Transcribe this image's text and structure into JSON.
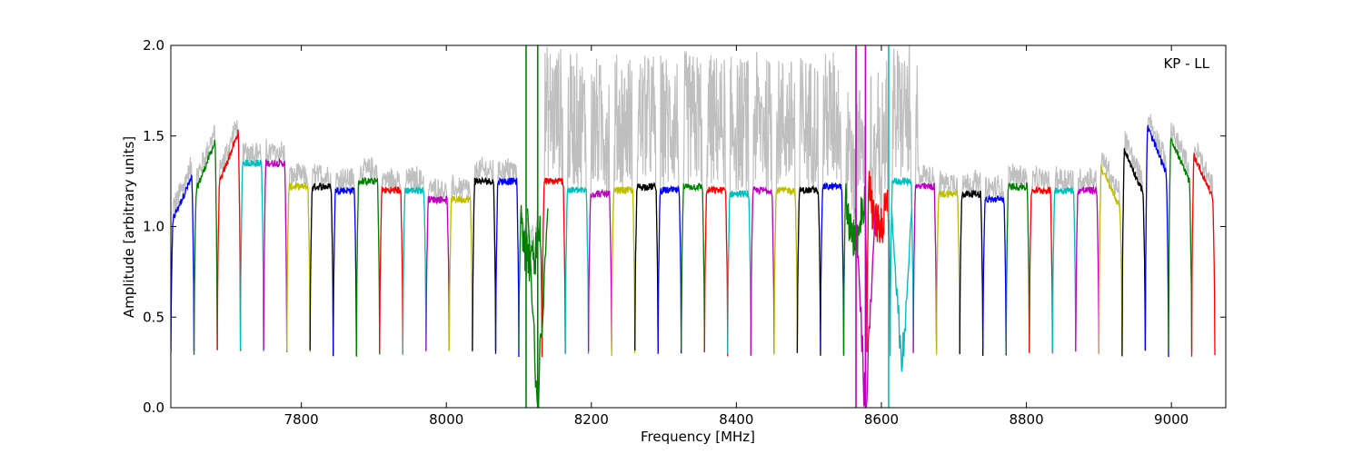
{
  "chart_data": {
    "type": "line",
    "xlabel": "Frequency [MHz]",
    "ylabel": "Amplitude [arbitrary units]",
    "annotation": "KP - LL",
    "annotation_placement": "top-right",
    "xlim": [
      7620,
      9075
    ],
    "ylim": [
      0.0,
      2.0
    ],
    "xticks": [
      7800,
      8000,
      8200,
      8400,
      8600,
      8800,
      9000
    ],
    "yticks": [
      0.0,
      0.5,
      1.0,
      1.5,
      2.0
    ],
    "ytick_labels": [
      "0.0",
      "0.5",
      "1.0",
      "1.5",
      "2.0"
    ],
    "grid": false,
    "series_colors": [
      "#0000ff",
      "#008000",
      "#ff0000",
      "#00bfbf",
      "#bf00bf",
      "#bfbf00",
      "#000000"
    ],
    "background_series": {
      "color": "#bfbfbf",
      "description_range_mhz": [
        8130,
        8650
      ],
      "peak_amplitude": 2.0
    },
    "bandpass_channel_width_mhz": 32,
    "channels": [
      {
        "start": 7620,
        "level": 1.3,
        "shape": "rising"
      },
      {
        "start": 7652,
        "level": 1.5,
        "shape": "rising"
      },
      {
        "start": 7684,
        "level": 1.55,
        "shape": "rising"
      },
      {
        "start": 7716,
        "level": 1.35,
        "shape": "flat"
      },
      {
        "start": 7748,
        "level": 1.35,
        "shape": "flat"
      },
      {
        "start": 7780,
        "level": 1.22,
        "shape": "flat"
      },
      {
        "start": 7812,
        "level": 1.22,
        "shape": "flat"
      },
      {
        "start": 7844,
        "level": 1.2,
        "shape": "flat"
      },
      {
        "start": 7876,
        "level": 1.25,
        "shape": "flat"
      },
      {
        "start": 7908,
        "level": 1.2,
        "shape": "flat"
      },
      {
        "start": 7940,
        "level": 1.2,
        "shape": "flat"
      },
      {
        "start": 7972,
        "level": 1.15,
        "shape": "flat"
      },
      {
        "start": 8004,
        "level": 1.15,
        "shape": "flat"
      },
      {
        "start": 8036,
        "level": 1.25,
        "shape": "flat"
      },
      {
        "start": 8068,
        "level": 1.25,
        "shape": "flat"
      },
      {
        "start": 8100,
        "level": 1.1,
        "shape": "noisy"
      },
      {
        "start": 8132,
        "level": 1.25,
        "shape": "flat"
      },
      {
        "start": 8164,
        "level": 1.2,
        "shape": "flat"
      },
      {
        "start": 8196,
        "level": 1.18,
        "shape": "flat"
      },
      {
        "start": 8228,
        "level": 1.2,
        "shape": "flat"
      },
      {
        "start": 8260,
        "level": 1.22,
        "shape": "flat"
      },
      {
        "start": 8292,
        "level": 1.2,
        "shape": "flat"
      },
      {
        "start": 8324,
        "level": 1.22,
        "shape": "flat"
      },
      {
        "start": 8356,
        "level": 1.2,
        "shape": "flat"
      },
      {
        "start": 8388,
        "level": 1.18,
        "shape": "flat"
      },
      {
        "start": 8420,
        "level": 1.2,
        "shape": "flat"
      },
      {
        "start": 8452,
        "level": 1.2,
        "shape": "flat"
      },
      {
        "start": 8484,
        "level": 1.2,
        "shape": "flat"
      },
      {
        "start": 8516,
        "level": 1.22,
        "shape": "flat"
      },
      {
        "start": 8548,
        "level": 1.25,
        "shape": "noisy"
      },
      {
        "start": 8580,
        "level": 1.3,
        "shape": "noisy"
      },
      {
        "start": 8612,
        "level": 1.25,
        "shape": "flat"
      },
      {
        "start": 8644,
        "level": 1.22,
        "shape": "flat"
      },
      {
        "start": 8676,
        "level": 1.18,
        "shape": "flat"
      },
      {
        "start": 8708,
        "level": 1.18,
        "shape": "flat"
      },
      {
        "start": 8740,
        "level": 1.15,
        "shape": "flat"
      },
      {
        "start": 8772,
        "level": 1.22,
        "shape": "flat"
      },
      {
        "start": 8804,
        "level": 1.2,
        "shape": "flat"
      },
      {
        "start": 8836,
        "level": 1.2,
        "shape": "flat"
      },
      {
        "start": 8868,
        "level": 1.2,
        "shape": "flat"
      },
      {
        "start": 8900,
        "level": 1.35,
        "shape": "falling"
      },
      {
        "start": 8932,
        "level": 1.45,
        "shape": "falling"
      },
      {
        "start": 8964,
        "level": 1.58,
        "shape": "falling"
      },
      {
        "start": 8996,
        "level": 1.52,
        "shape": "falling"
      },
      {
        "start": 9028,
        "level": 1.42,
        "shape": "falling"
      }
    ],
    "spikes": [
      {
        "x": 8110,
        "color": "#008000"
      },
      {
        "x": 8126,
        "color": "#008000"
      },
      {
        "x": 8565,
        "color": "#bf00bf"
      },
      {
        "x": 8578,
        "color": "#bf00bf"
      },
      {
        "x": 8610,
        "color": "#00bfbf"
      }
    ],
    "rfi_dips": [
      {
        "x": 8126,
        "min_amplitude": 0.0,
        "color": "#008000"
      },
      {
        "x": 8578,
        "min_amplitude": 0.0,
        "color": "#bf00bf"
      },
      {
        "x": 8628,
        "min_amplitude": 0.2,
        "color": "#00bfbf"
      }
    ]
  }
}
